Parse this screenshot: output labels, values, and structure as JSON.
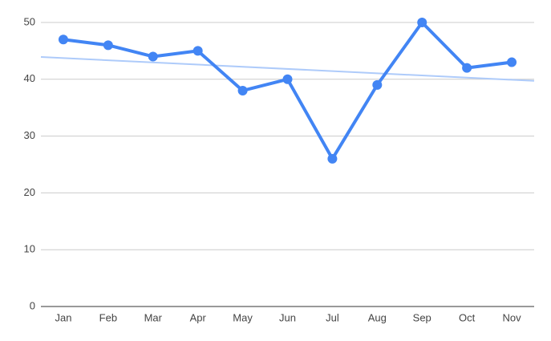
{
  "chart_data": {
    "type": "line",
    "categories": [
      "Jan",
      "Feb",
      "Mar",
      "Apr",
      "May",
      "Jun",
      "Jul",
      "Aug",
      "Sep",
      "Oct",
      "Nov"
    ],
    "series": [
      {
        "color": "#4285f4",
        "values": [
          47,
          46,
          44,
          45,
          38,
          40,
          26,
          39,
          50,
          42,
          43
        ]
      }
    ],
    "ylim": [
      0,
      50
    ],
    "yticks": [
      0,
      10,
      20,
      30,
      40,
      50
    ],
    "grid": true,
    "trendline": true,
    "trendline_color": "#aecbfa"
  }
}
